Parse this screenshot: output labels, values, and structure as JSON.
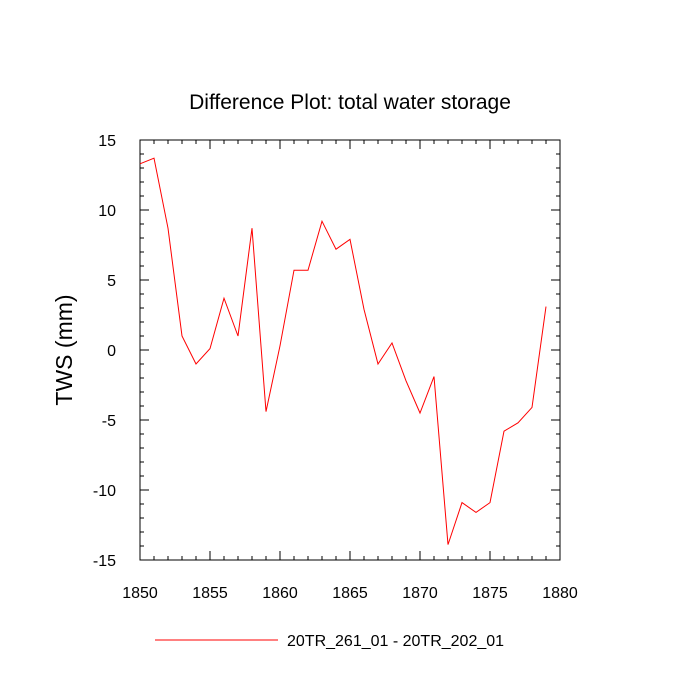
{
  "chart_data": {
    "type": "line",
    "title": "Difference Plot: total water storage",
    "xlabel": "",
    "ylabel": "TWS  (mm)",
    "xlim": [
      1850,
      1880
    ],
    "ylim": [
      -15,
      15
    ],
    "xticks": [
      1850,
      1855,
      1860,
      1865,
      1870,
      1875,
      1880
    ],
    "yticks": [
      -15,
      -10,
      -5,
      0,
      5,
      10,
      15
    ],
    "grid": false,
    "legend_position": "bottom",
    "series": [
      {
        "name": "20TR_261_01 - 20TR_202_01",
        "color": "#ff0000",
        "x": [
          1850,
          1851,
          1852,
          1853,
          1854,
          1855,
          1856,
          1857,
          1858,
          1859,
          1860,
          1861,
          1862,
          1863,
          1864,
          1865,
          1866,
          1867,
          1868,
          1869,
          1870,
          1871,
          1872,
          1873,
          1874,
          1875,
          1876,
          1877,
          1878,
          1879
        ],
        "values": [
          13.3,
          13.7,
          8.7,
          1.0,
          -1.0,
          0.1,
          3.7,
          1.0,
          8.7,
          -4.4,
          0.3,
          5.7,
          5.7,
          9.2,
          7.2,
          7.9,
          2.9,
          -1.0,
          0.5,
          -2.2,
          -4.5,
          -1.9,
          -13.9,
          -10.9,
          -11.6,
          -10.9,
          -5.8,
          -5.2,
          -4.1,
          3.1
        ]
      }
    ]
  }
}
